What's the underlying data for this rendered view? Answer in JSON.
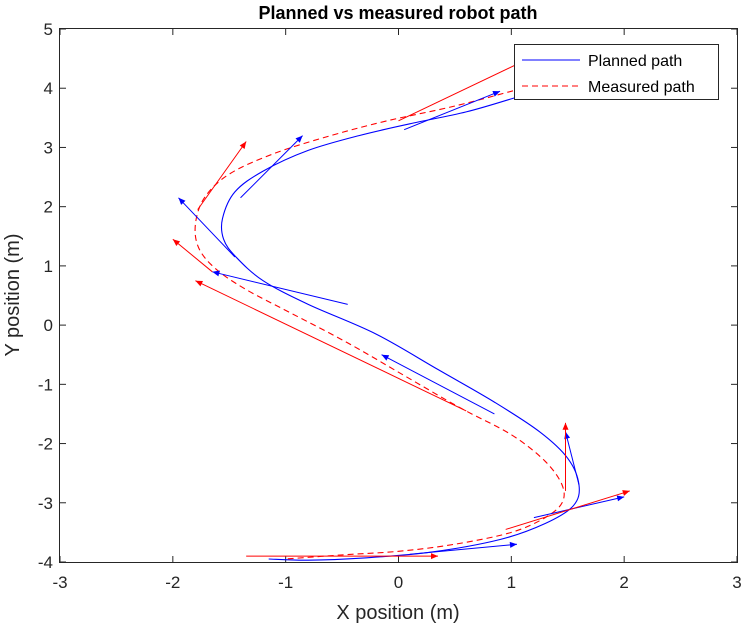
{
  "chart_data": {
    "type": "line",
    "title": "Planned vs measured robot path",
    "xlabel": "X position (m)",
    "ylabel": "Y position (m)",
    "xlim": [
      -3,
      3
    ],
    "ylim": [
      -4,
      5
    ],
    "xticks": [
      "-3",
      "-2",
      "-1",
      "0",
      "1",
      "2",
      "3"
    ],
    "yticks": [
      "-4",
      "-3",
      "-2",
      "-1",
      "0",
      "1",
      "2",
      "3",
      "4",
      "5"
    ],
    "grid": false,
    "legend_position": "top-right",
    "series": [
      {
        "name": "Planned path",
        "color": "#0000ff",
        "style": "solid",
        "x": [
          1.05,
          0.6,
          0.1,
          -0.35,
          -0.8,
          -1.2,
          -1.45,
          -1.56,
          -1.55,
          -1.44,
          -1.2,
          -0.8,
          -0.2,
          0.35,
          0.85,
          1.25,
          1.5,
          1.6,
          1.55,
          1.3,
          0.9,
          0.3,
          -0.3,
          -0.8,
          -1.15
        ],
        "y": [
          3.85,
          3.6,
          3.4,
          3.2,
          2.95,
          2.6,
          2.25,
          1.8,
          1.45,
          1.15,
          0.75,
          0.35,
          -0.15,
          -0.75,
          -1.3,
          -1.8,
          -2.25,
          -2.7,
          -3.05,
          -3.35,
          -3.62,
          -3.83,
          -3.93,
          -3.97,
          -3.95
        ]
      },
      {
        "name": "Measured path",
        "color": "#ff0000",
        "style": "dashed",
        "x": [
          1.1,
          0.5,
          -0.1,
          -0.6,
          -1.1,
          -1.5,
          -1.72,
          -1.8,
          -1.77,
          -1.62,
          -1.35,
          -0.95,
          -0.45,
          0.05,
          0.55,
          1.0,
          1.3,
          1.45,
          1.45,
          1.3,
          1.0,
          0.5,
          0.0,
          -0.5,
          -1.0
        ],
        "y": [
          4.0,
          3.7,
          3.45,
          3.2,
          2.9,
          2.55,
          2.15,
          1.7,
          1.3,
          0.95,
          0.6,
          0.2,
          -0.3,
          -0.85,
          -1.4,
          -1.85,
          -2.3,
          -2.7,
          -3.0,
          -3.25,
          -3.5,
          -3.7,
          -3.82,
          -3.88,
          -3.95
        ]
      }
    ],
    "annotations": {
      "planned_headings": [
        [
          0.05,
          3.3,
          0.9,
          3.95
        ],
        [
          -1.4,
          2.15,
          -0.85,
          3.2
        ],
        [
          -1.45,
          1.15,
          -1.95,
          2.15
        ],
        [
          -0.45,
          0.35,
          -1.65,
          0.9
        ],
        [
          0.85,
          -1.5,
          -0.15,
          -0.5
        ],
        [
          1.6,
          -2.7,
          1.48,
          -1.8
        ],
        [
          1.2,
          -3.25,
          2.0,
          -2.9
        ],
        [
          0.1,
          -3.87,
          1.05,
          -3.7
        ]
      ],
      "measured_headings": [
        [
          0.0,
          3.45,
          1.1,
          4.45
        ],
        [
          -1.78,
          1.95,
          -1.35,
          3.1
        ],
        [
          -1.65,
          0.9,
          -2.0,
          1.45
        ],
        [
          0.6,
          -1.45,
          -1.8,
          0.75
        ],
        [
          1.48,
          -2.8,
          1.48,
          -1.65
        ],
        [
          0.95,
          -3.45,
          2.05,
          -2.8
        ],
        [
          -1.35,
          -3.9,
          0.35,
          -3.9
        ]
      ]
    }
  }
}
